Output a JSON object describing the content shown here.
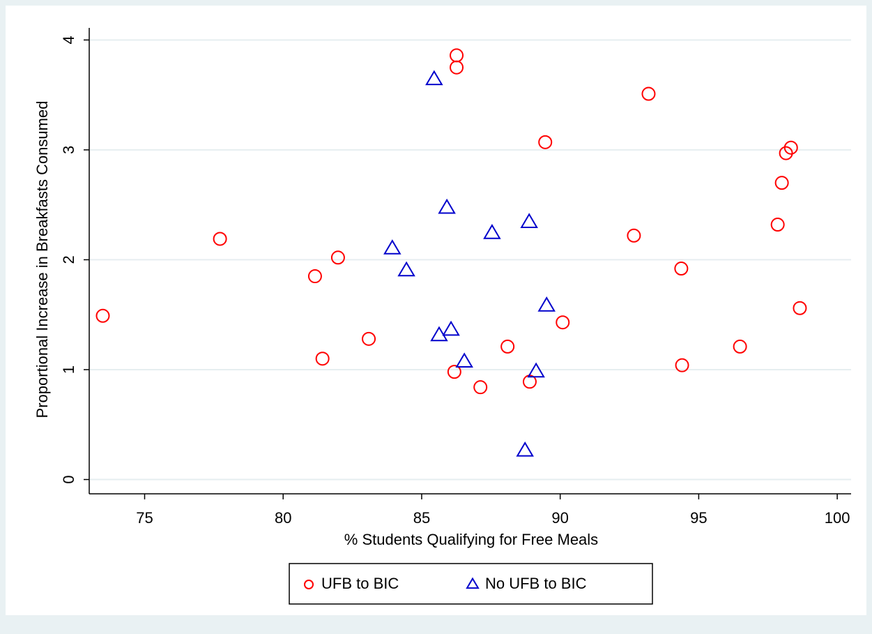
{
  "chart_data": {
    "type": "scatter",
    "x_label": "% Students Qualifying for Free Meals",
    "y_label": "Proportional Increase in Breakfasts Consumed",
    "xlim": [
      73,
      100.5
    ],
    "ylim": [
      -0.13,
      4.11
    ],
    "xticks": [
      75,
      80,
      85,
      90,
      95,
      100
    ],
    "yticks": [
      0,
      1,
      2,
      3,
      4
    ],
    "grid": true,
    "legend": "bottom",
    "series": [
      {
        "name": "UFB to BIC",
        "color": "#ff0000",
        "marker": "circle",
        "x": [
          73.49,
          77.72,
          81.15,
          81.98,
          81.42,
          83.09,
          86.26,
          86.26,
          86.18,
          87.12,
          88.1,
          88.9,
          89.46,
          90.09,
          92.66,
          93.19,
          94.37,
          94.4,
          96.49,
          97.85,
          98.0,
          98.15,
          98.33,
          98.65
        ],
        "values": [
          1.49,
          2.19,
          1.85,
          2.02,
          1.1,
          1.28,
          3.86,
          3.75,
          0.98,
          0.84,
          1.21,
          0.89,
          3.07,
          1.43,
          2.22,
          3.51,
          1.92,
          1.04,
          1.21,
          2.32,
          2.7,
          2.97,
          3.02,
          1.56
        ]
      },
      {
        "name": "No UFB to BIC",
        "color": "#0000cc",
        "marker": "triangle",
        "x": [
          85.45,
          85.91,
          83.94,
          84.45,
          87.54,
          88.88,
          89.51,
          86.06,
          85.63,
          86.54,
          89.13,
          88.73
        ],
        "values": [
          3.64,
          2.47,
          2.1,
          1.9,
          2.24,
          2.34,
          1.58,
          1.36,
          1.31,
          1.07,
          0.98,
          0.26
        ]
      }
    ]
  }
}
